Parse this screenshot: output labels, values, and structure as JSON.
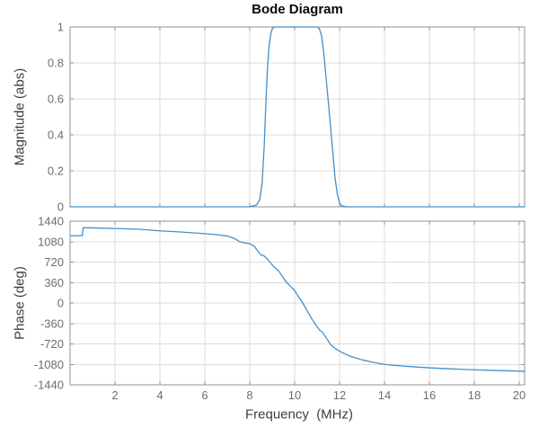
{
  "figure": {
    "title": "Bode Diagram",
    "colors": {
      "background": "#ffffff",
      "line": "#4390c9",
      "grid": "#dcdcdc",
      "box": "#919191",
      "tick_label": "#6e6e6e",
      "axis_label": "#3d3d3d",
      "title": "#0a0a0a"
    }
  },
  "chart_data": [
    {
      "type": "line",
      "name": "magnitude-subplot",
      "title": "Bode Diagram",
      "ylabel": "Magnitude (abs)",
      "xlabel": "",
      "xlim": [
        0,
        20.24
      ],
      "ylim": [
        0,
        1
      ],
      "yticks": [
        1,
        0.8,
        0.6,
        0.4,
        0.2,
        0
      ],
      "xticks": [
        2,
        4,
        6,
        8,
        10,
        12,
        14,
        16,
        18,
        20
      ],
      "show_x_tick_labels": false,
      "grid": true,
      "legend": "none",
      "series": [
        {
          "name": "magnitude-response",
          "x": [
            0,
            8.0,
            8.3,
            8.45,
            8.55,
            8.65,
            8.7,
            8.78,
            8.85,
            8.92,
            9.0,
            9.1,
            9.5,
            10.0,
            10.5,
            11.0,
            11.1,
            11.2,
            11.3,
            11.45,
            11.56,
            11.7,
            11.8,
            11.9,
            12.0,
            12.1,
            12.3,
            20.24
          ],
          "y": [
            0,
            0,
            0.01,
            0.04,
            0.13,
            0.35,
            0.52,
            0.75,
            0.88,
            0.95,
            0.99,
            1,
            1,
            1,
            1,
            1,
            0.99,
            0.95,
            0.85,
            0.65,
            0.5,
            0.3,
            0.16,
            0.07,
            0.02,
            0.005,
            0,
            0
          ]
        }
      ]
    },
    {
      "type": "line",
      "name": "phase-subplot",
      "title": "",
      "ylabel": "Phase (deg)",
      "xlabel": "Frequency  (MHz)",
      "xlim": [
        0,
        20.24
      ],
      "ylim": [
        -1440,
        1440
      ],
      "yticks": [
        1440,
        1080,
        720,
        360,
        0,
        -360,
        -720,
        -1080,
        -1440
      ],
      "xticks": [
        2,
        4,
        6,
        8,
        10,
        12,
        14,
        16,
        18,
        20
      ],
      "show_x_tick_labels": true,
      "grid": true,
      "legend": "none",
      "series": [
        {
          "name": "phase-response",
          "x": [
            0,
            0.55,
            0.58,
            1,
            2,
            3,
            4,
            5,
            6,
            6.5,
            7,
            7.3,
            7.55,
            7.8,
            8.0,
            8.2,
            8.35,
            8.5,
            8.62,
            8.75,
            8.9,
            9.05,
            9.3,
            9.6,
            9.8,
            10.0,
            10.2,
            10.36,
            10.55,
            10.75,
            10.95,
            11.1,
            11.25,
            11.4,
            11.6,
            11.8,
            12.1,
            12.5,
            13.0,
            13.5,
            14.0,
            14.5,
            15.0,
            16.0,
            17.0,
            18.0,
            19.0,
            20.24
          ],
          "y": [
            1185,
            1185,
            1325,
            1322,
            1312,
            1300,
            1270,
            1248,
            1220,
            1205,
            1180,
            1140,
            1080,
            1055,
            1045,
            1000,
            920,
            845,
            835,
            790,
            720,
            650,
            560,
            380,
            300,
            220,
            95,
            0,
            -130,
            -270,
            -390,
            -470,
            -520,
            -610,
            -730,
            -800,
            -870,
            -940,
            -1000,
            -1045,
            -1080,
            -1100,
            -1115,
            -1140,
            -1160,
            -1175,
            -1188,
            -1200
          ]
        }
      ]
    }
  ]
}
